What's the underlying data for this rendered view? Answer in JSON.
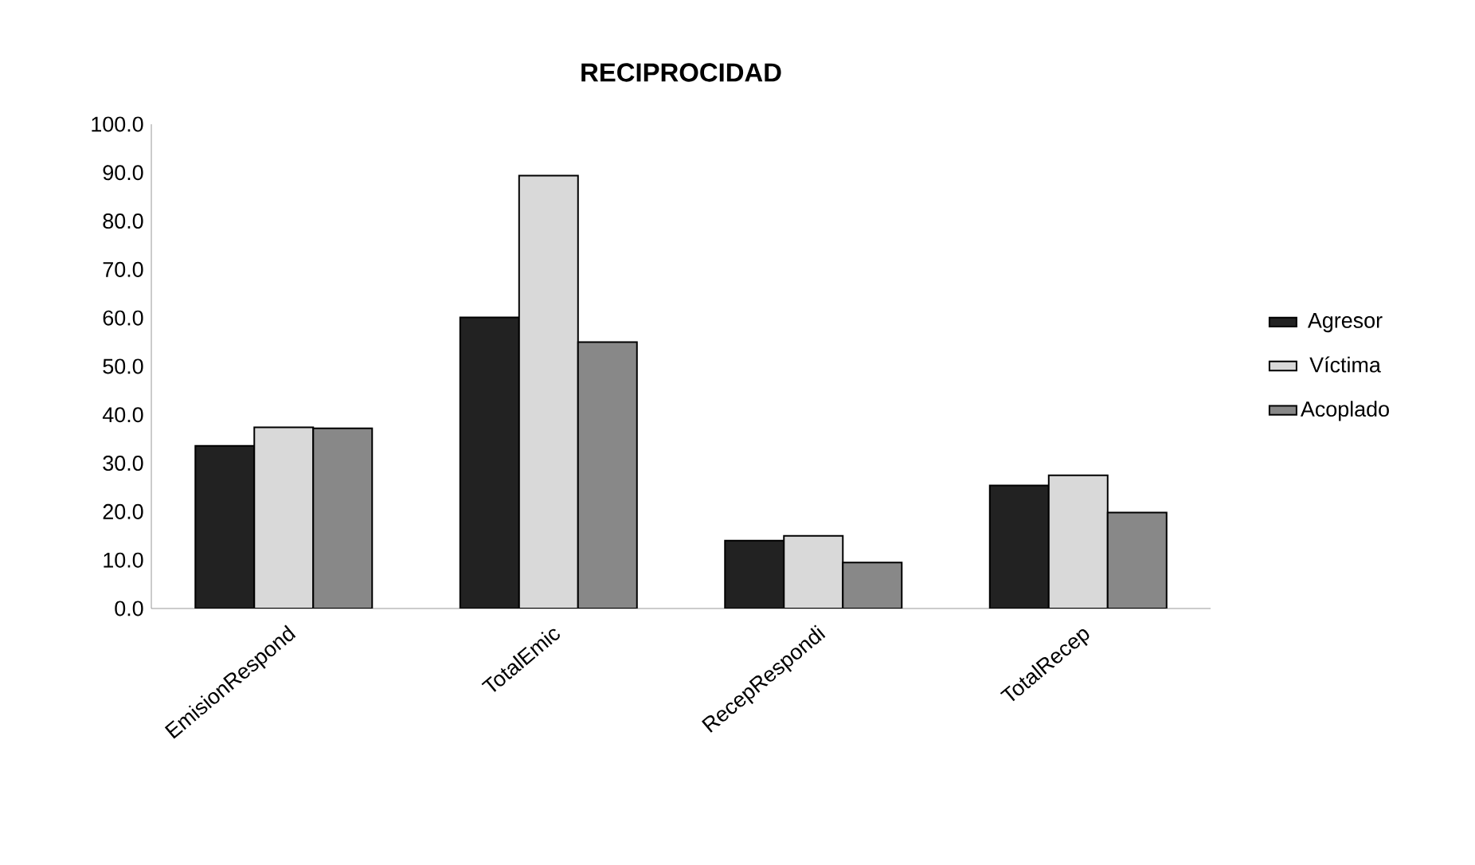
{
  "chart_data": {
    "type": "bar",
    "title": "RECIPROCIDAD",
    "categories": [
      "EmisionRespond",
      "TotalEmic",
      "RecepRespondi",
      "TotalRecep"
    ],
    "series": [
      {
        "name": "Agresor",
        "color": "#222222",
        "values": [
          33.6,
          60.1,
          14.0,
          25.4
        ]
      },
      {
        "name": "Víctima",
        "color": "#d9d9d9",
        "values": [
          37.4,
          89.4,
          15.0,
          27.5
        ]
      },
      {
        "name": "Acoplado",
        "color": "#888888",
        "values": [
          37.2,
          55.0,
          9.5,
          19.8
        ]
      }
    ],
    "ylim": [
      0,
      100
    ],
    "yticks": [
      {
        "value": 0,
        "label": "0.0"
      },
      {
        "value": 10,
        "label": "10.0"
      },
      {
        "value": 20,
        "label": "20.0"
      },
      {
        "value": 30,
        "label": "30.0"
      },
      {
        "value": 40,
        "label": "40.0"
      },
      {
        "value": 50,
        "label": "50.0"
      },
      {
        "value": 60,
        "label": "60.0"
      },
      {
        "value": 70,
        "label": "70.0"
      },
      {
        "value": 80,
        "label": "80.0"
      },
      {
        "value": 90,
        "label": "90.0"
      },
      {
        "value": 100,
        "label": "100.0"
      }
    ],
    "grid": false,
    "legend": "right"
  }
}
